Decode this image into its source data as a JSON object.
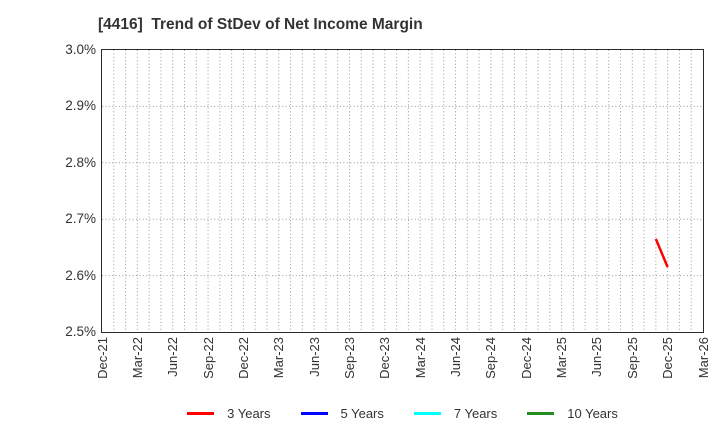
{
  "title": "[4416]  Trend of StDev of Net Income Margin",
  "chart_data": {
    "type": "line",
    "title": "[4416]  Trend of StDev of Net Income Margin",
    "xlabel": "",
    "ylabel": "",
    "ylim": [
      2.5,
      3.0
    ],
    "y_ticks": [
      {
        "label": "3.0%",
        "value": 3.0
      },
      {
        "label": "2.9%",
        "value": 2.9
      },
      {
        "label": "2.8%",
        "value": 2.8
      },
      {
        "label": "2.7%",
        "value": 2.7
      },
      {
        "label": "2.6%",
        "value": 2.6
      },
      {
        "label": "2.5%",
        "value": 2.5
      }
    ],
    "x_axis": {
      "start": {
        "year": 2021,
        "month": 12
      },
      "months_total": 51,
      "tick_interval_months": 3,
      "tick_labels": [
        "Dec-21",
        "Mar-22",
        "Jun-22",
        "Sep-22",
        "Dec-22",
        "Mar-23",
        "Jun-23",
        "Sep-23",
        "Dec-23",
        "Mar-24",
        "Jun-24",
        "Sep-24",
        "Dec-24",
        "Mar-25",
        "Jun-25",
        "Sep-25",
        "Dec-25",
        "Mar-26"
      ]
    },
    "grid": {
      "vertical": "monthly dotted",
      "horizontal": "every 0.1% dotted",
      "color": "#999999"
    },
    "legend_position": "bottom",
    "series": [
      {
        "name": "3 Years",
        "color": "#ff0000",
        "points": [
          {
            "month": "2025-11",
            "value": 2.665
          },
          {
            "month": "2025-12",
            "value": 2.615
          }
        ]
      },
      {
        "name": "5 Years",
        "color": "#0000ff",
        "points": []
      },
      {
        "name": "7 Years",
        "color": "#00ffff",
        "points": []
      },
      {
        "name": "10 Years",
        "color": "#228b22",
        "points": []
      }
    ]
  }
}
